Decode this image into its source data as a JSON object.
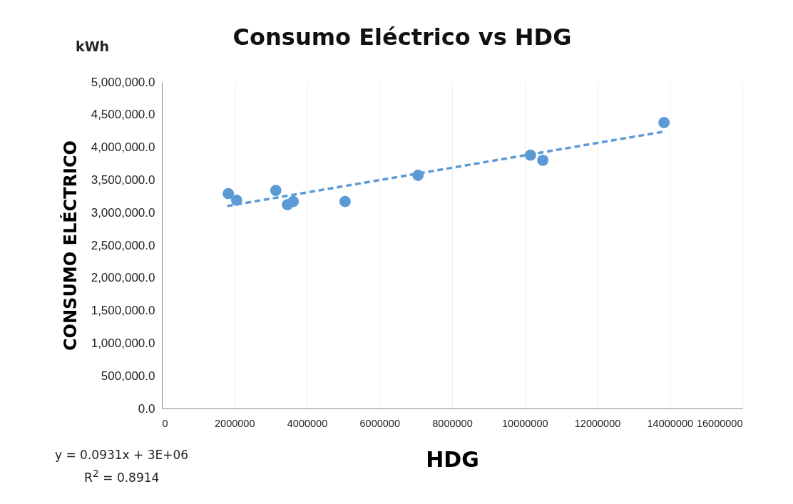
{
  "chart_data": {
    "type": "scatter",
    "title": "Consumo Eléctrico vs HDG",
    "xlabel": "HDG",
    "ylabel": "CONSUMO ELÉCTRICO",
    "annotations": [
      "kWh",
      "y = 0.0931x + 3E+06",
      "R$^{2}$ = 0.8914"
    ],
    "xlim": [
      0,
      16000000
    ],
    "xticks": [
      0,
      2000000,
      4000000,
      6000000,
      8000000,
      10000000,
      12000000,
      14000000,
      16000000
    ],
    "ylim": [
      0,
      5000000
    ],
    "yticks": [
      {
        "value": 0,
        "label": "0.0"
      },
      {
        "value": 500000,
        "label": "500,000.0"
      },
      {
        "value": 1000000,
        "label": "1,000,000.0"
      },
      {
        "value": 1500000,
        "label": "1,500,000.0"
      },
      {
        "value": 2000000,
        "label": "2,000,000.0"
      },
      {
        "value": 2500000,
        "label": "2,500,000.0"
      },
      {
        "value": 3000000,
        "label": "3,000,000.0"
      },
      {
        "value": 3500000,
        "label": "3,500,000.0"
      },
      {
        "value": 4000000,
        "label": "4,000,000.0"
      },
      {
        "value": 4500000,
        "label": "4,500,000.0"
      },
      {
        "value": 5000000,
        "label": "5,000,000.0"
      }
    ],
    "grid": "x",
    "marker": "circle",
    "series": [
      {
        "color": "#5b9bd5",
        "x": [
          1830000,
          2060000,
          3140000,
          3460000,
          3620000,
          5050000,
          7060000,
          10160000,
          10500000,
          13840000
        ],
        "values": [
          3290000,
          3190000,
          3340000,
          3120000,
          3170000,
          3170000,
          3570000,
          3880000,
          3800000,
          4380000
        ]
      },
      {
        "type": "line",
        "color": "#5b9bd5",
        "line_style": "dashed",
        "marker": "none",
        "x": [
          1800000,
          13840000
        ],
        "values": [
          3100000,
          4240000
        ]
      }
    ]
  }
}
